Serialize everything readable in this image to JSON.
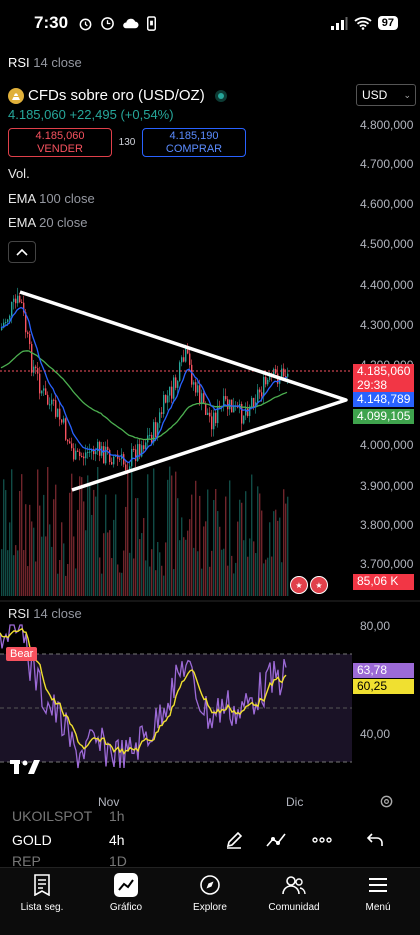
{
  "status": {
    "time": "7:30",
    "battery": "97",
    "left_icons": [
      "alarm-icon",
      "clock-icon",
      "cloud-icon",
      "phone-icon"
    ],
    "right_icons": [
      "signal-icon",
      "wifi-icon",
      "battery-icon"
    ]
  },
  "top_indicator": {
    "name": "RSI",
    "params": "14 close"
  },
  "symbol": {
    "title": "CFDs sobre oro (USD/OZ)",
    "price": "4.185,060",
    "change": "+22,495",
    "change_pct": "(+0,54%)",
    "live_color": "#26a69a"
  },
  "trade": {
    "sell_price": "4.185,060",
    "sell_label": "VENDER",
    "spread": "130",
    "buy_price": "4.185,190",
    "buy_label": "COMPRAR"
  },
  "indicators": {
    "vol": "Vol.",
    "ema100_name": "EMA",
    "ema100_params": "100 close",
    "ema20_name": "EMA",
    "ema20_params": "20 close"
  },
  "currency": "USD",
  "price_axis": [
    "4.800,000",
    "4.700,000",
    "4.600,000",
    "4.500,000",
    "4.400,000",
    "4.300,000",
    "4.200,000",
    "4.000,000",
    "3.900,000",
    "3.800,000",
    "3.700,000"
  ],
  "price_tags": {
    "last_price": "4.185,060",
    "countdown": "29:38",
    "ema20_value": "4.148,789",
    "ema100_value": "4.099,105",
    "volume_value": "85,06 K"
  },
  "rsi_panel": {
    "name": "RSI",
    "params": "14 close",
    "axis": [
      "80,00",
      "40,00"
    ],
    "rsi_value": "63,78",
    "ma_value": "60,25",
    "bear_label": "Bear"
  },
  "time_axis": [
    "Nov",
    "Dic"
  ],
  "watchlist_partial": [
    {
      "symbol": "UKOILSPOT",
      "interval": "1h"
    },
    {
      "symbol": "GOLD",
      "interval": "4h"
    },
    {
      "symbol": "REP",
      "interval": "1D"
    }
  ],
  "bottom_nav": [
    {
      "label": "Lista seg.",
      "icon": "watchlist-icon"
    },
    {
      "label": "Gráfico",
      "icon": "chart-icon"
    },
    {
      "label": "Explore",
      "icon": "compass-icon"
    },
    {
      "label": "Comunidad",
      "icon": "community-icon"
    },
    {
      "label": "Menú",
      "icon": "menu-icon"
    }
  ],
  "colors": {
    "up": "#26a69a",
    "down": "#f7525f",
    "ema20": "#2962ff",
    "ema100": "#4caf50",
    "rsi": "#9c6ad6",
    "rsi_ma": "#f0e030",
    "bg": "#000000"
  }
}
